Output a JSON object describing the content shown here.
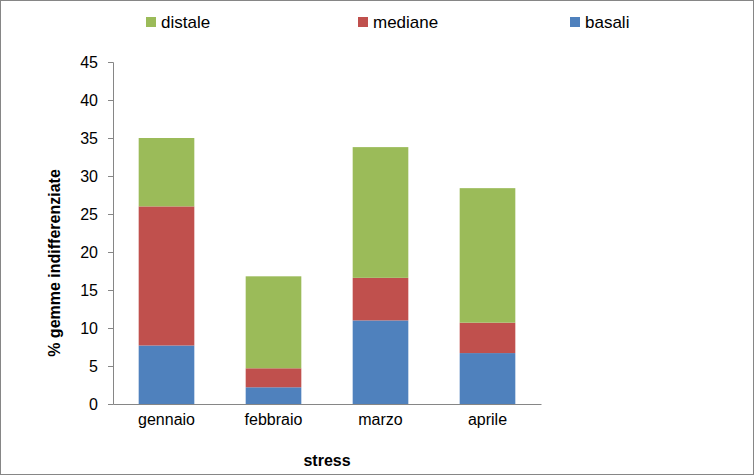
{
  "chart_data": {
    "type": "bar",
    "stacked": true,
    "legend": "top",
    "grid": false,
    "x_label": "stress",
    "y_label": "% gemme indifferenziate",
    "categories": [
      "gennaio",
      "febbraio",
      "marzo",
      "aprile"
    ],
    "series": [
      {
        "name": "basali",
        "color": "#4f81bd",
        "values": [
          7.7,
          2.2,
          11.0,
          6.7
        ]
      },
      {
        "name": "mediane",
        "color": "#c0504d",
        "values": [
          18.3,
          2.5,
          5.6,
          4.0
        ]
      },
      {
        "name": "distale",
        "color": "#9bbb59",
        "values": [
          9.0,
          12.1,
          17.2,
          17.7
        ]
      }
    ],
    "ylim": [
      0,
      45
    ],
    "yticks": [
      0,
      5,
      10,
      15,
      20,
      25,
      30,
      35,
      40,
      45
    ]
  }
}
